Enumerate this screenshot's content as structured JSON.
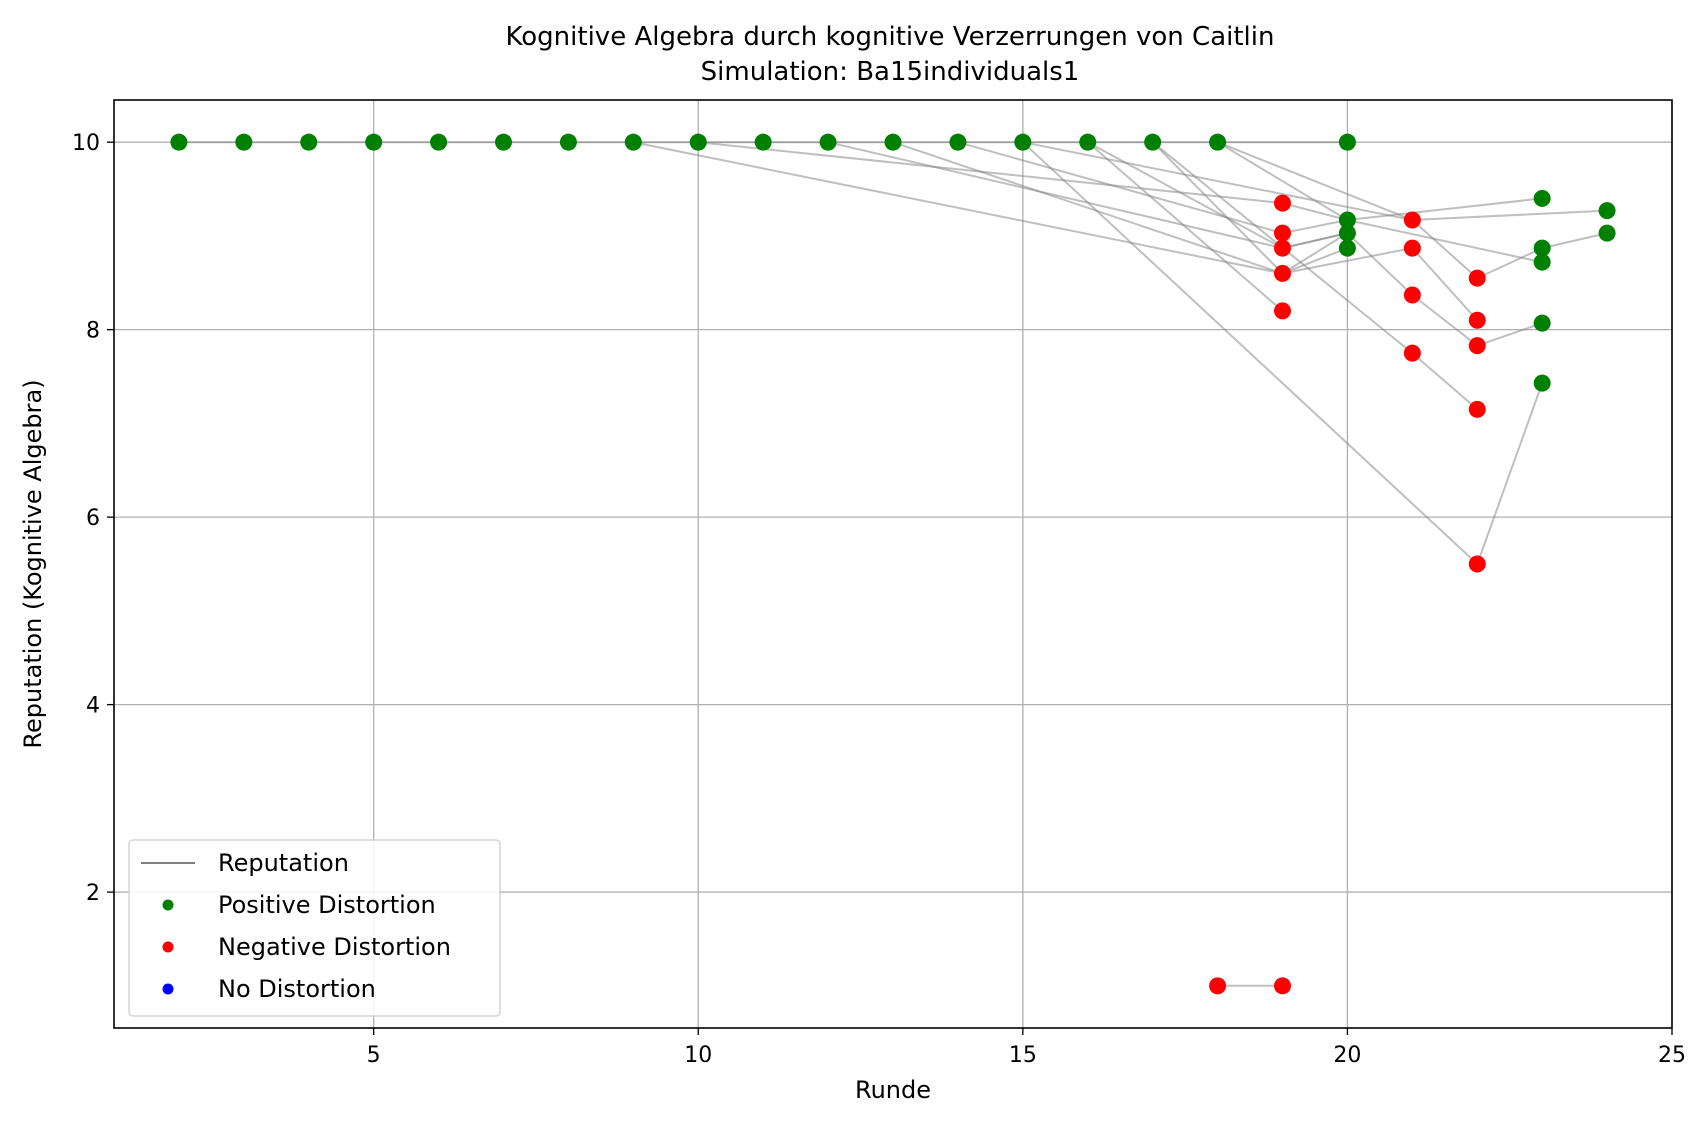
{
  "chart_data": {
    "type": "scatter",
    "title": "Kognitive Algebra durch kognitive Verzerrungen von Caitlin",
    "subtitle": "Simulation: Ba15individuals1",
    "xlabel": "Runde",
    "ylabel": "Reputation (Kognitive Algebra)",
    "xlim": [
      1,
      25
    ],
    "ylim": [
      0.55,
      10.45
    ],
    "xticks": [
      5,
      10,
      15,
      20,
      25
    ],
    "yticks": [
      2,
      4,
      6,
      8,
      10
    ],
    "grid": true,
    "legend_position": "lower-left",
    "legend": [
      {
        "label": "Reputation",
        "kind": "line",
        "color": "#808080"
      },
      {
        "label": "Positive Distortion",
        "kind": "marker",
        "color": "#008000"
      },
      {
        "label": "Negative Distortion",
        "kind": "marker",
        "color": "#ff0000"
      },
      {
        "label": "No Distortion",
        "kind": "marker",
        "color": "#0000ff"
      }
    ],
    "lines": [
      [
        [
          2,
          10
        ],
        [
          3,
          10
        ],
        [
          4,
          10
        ],
        [
          5,
          10
        ],
        [
          6,
          10
        ],
        [
          7,
          10
        ],
        [
          8,
          10
        ],
        [
          9,
          10
        ],
        [
          10,
          10
        ],
        [
          11,
          10
        ],
        [
          12,
          10
        ],
        [
          13,
          10
        ],
        [
          14,
          10
        ],
        [
          15,
          10
        ],
        [
          16,
          10
        ],
        [
          17,
          10
        ],
        [
          18,
          10
        ],
        [
          19,
          10
        ],
        [
          20,
          10
        ]
      ],
      [
        [
          9,
          10
        ],
        [
          19,
          8.6
        ],
        [
          20,
          8.87
        ]
      ],
      [
        [
          10,
          10
        ],
        [
          19,
          9.35
        ],
        [
          20,
          9.17
        ]
      ],
      [
        [
          12,
          10
        ],
        [
          19,
          8.87
        ],
        [
          20,
          9.03
        ]
      ],
      [
        [
          13,
          10
        ],
        [
          19,
          8.6
        ],
        [
          20,
          9.03
        ]
      ],
      [
        [
          14,
          10
        ],
        [
          19,
          9.03
        ],
        [
          20,
          9.17
        ],
        [
          23,
          9.4
        ]
      ],
      [
        [
          15,
          10
        ],
        [
          22,
          5.5
        ],
        [
          23,
          7.43
        ]
      ],
      [
        [
          15,
          10
        ],
        [
          21,
          9.17
        ],
        [
          24,
          9.27
        ]
      ],
      [
        [
          16,
          10
        ],
        [
          19,
          8.87
        ],
        [
          20,
          9.03
        ],
        [
          21,
          8.37
        ],
        [
          22,
          7.83
        ],
        [
          23,
          8.07
        ]
      ],
      [
        [
          16,
          10
        ],
        [
          19,
          8.2
        ]
      ],
      [
        [
          17,
          10
        ],
        [
          21,
          7.75
        ],
        [
          22,
          7.15
        ]
      ],
      [
        [
          17,
          10
        ],
        [
          19,
          8.6
        ],
        [
          21,
          8.87
        ],
        [
          22,
          8.1
        ]
      ],
      [
        [
          18,
          10
        ],
        [
          21,
          9.17
        ],
        [
          22,
          8.55
        ],
        [
          23,
          8.87
        ],
        [
          24,
          9.03
        ]
      ],
      [
        [
          18,
          10
        ],
        [
          20,
          9.17
        ],
        [
          23,
          8.72
        ]
      ],
      [
        [
          18,
          1
        ],
        [
          19,
          1
        ]
      ]
    ],
    "positive_points": [
      [
        2,
        10
      ],
      [
        3,
        10
      ],
      [
        4,
        10
      ],
      [
        5,
        10
      ],
      [
        6,
        10
      ],
      [
        7,
        10
      ],
      [
        8,
        10
      ],
      [
        9,
        10
      ],
      [
        10,
        10
      ],
      [
        11,
        10
      ],
      [
        12,
        10
      ],
      [
        13,
        10
      ],
      [
        14,
        10
      ],
      [
        15,
        10
      ],
      [
        16,
        10
      ],
      [
        17,
        10
      ],
      [
        18,
        10
      ],
      [
        20,
        10
      ],
      [
        20,
        9.17
      ],
      [
        20,
        9.03
      ],
      [
        20,
        8.87
      ],
      [
        23,
        9.4
      ],
      [
        23,
        8.87
      ],
      [
        23,
        8.72
      ],
      [
        23,
        8.07
      ],
      [
        23,
        7.43
      ],
      [
        24,
        9.27
      ],
      [
        24,
        9.03
      ]
    ],
    "negative_points": [
      [
        19,
        9.35
      ],
      [
        19,
        9.03
      ],
      [
        19,
        8.87
      ],
      [
        19,
        8.6
      ],
      [
        19,
        8.2
      ],
      [
        21,
        9.17
      ],
      [
        21,
        8.87
      ],
      [
        21,
        8.37
      ],
      [
        21,
        7.75
      ],
      [
        22,
        8.55
      ],
      [
        22,
        8.1
      ],
      [
        22,
        7.83
      ],
      [
        22,
        7.15
      ],
      [
        22,
        5.5
      ],
      [
        18,
        1
      ],
      [
        19,
        1
      ]
    ],
    "neutral_points": []
  }
}
